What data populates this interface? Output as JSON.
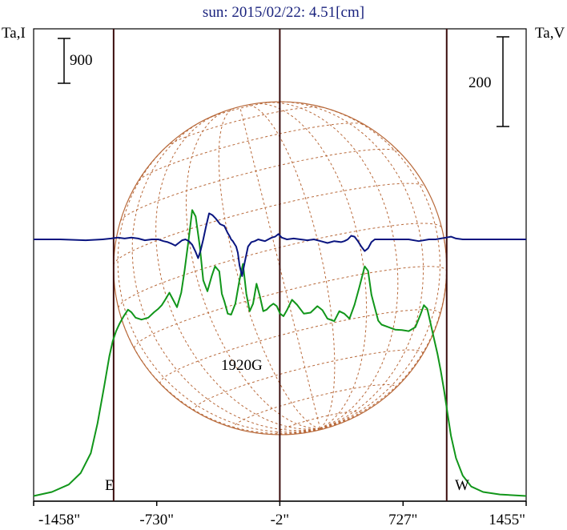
{
  "title": "sun: 2015/02/22: 4.51[cm]",
  "left_axis_label": "Ta,I",
  "right_axis_label": "Ta,V",
  "scale_left": "900",
  "scale_right": "200",
  "east_label": "E",
  "west_label": "W",
  "annotation": "1920G",
  "colors": {
    "intensity": "#11961a",
    "polarization": "#0a1580",
    "sun_grid": "#b8693a",
    "limb_lines": "#3a0c0c",
    "title": "#1a237e"
  },
  "chart_data": {
    "type": "line",
    "title": "sun: 2015/02/22: 4.51[cm]",
    "x_unit": "arcsec",
    "xlim": [
      -1458,
      1455
    ],
    "x_ticks": [
      -1458,
      -730,
      -2,
      727,
      1455
    ],
    "x_tick_labels": [
      "-1458\"",
      "-730\"",
      "-2\"",
      "727\"",
      "1455\""
    ],
    "vertical_lines": [
      -985,
      -2,
      985
    ],
    "series": [
      {
        "key": "intensity",
        "axis": "Ta,I",
        "x": [
          -1458,
          -1350,
          -1250,
          -1180,
          -1120,
          -1080,
          -1040,
          -1010,
          -990,
          -970,
          -950,
          -925,
          -900,
          -880,
          -855,
          -820,
          -780,
          -745,
          -720,
          -700,
          -680,
          -655,
          -630,
          -610,
          -585,
          -565,
          -540,
          -520,
          -500,
          -475,
          -455,
          -430,
          -405,
          -385,
          -360,
          -345,
          -330,
          -310,
          -290,
          -265,
          -240,
          -220,
          -200,
          -180,
          -160,
          -140,
          -120,
          -100,
          -80,
          -60,
          -40,
          -20,
          0,
          20,
          40,
          70,
          100,
          140,
          180,
          220,
          250,
          280,
          320,
          350,
          380,
          410,
          440,
          470,
          500,
          520,
          540,
          560,
          580,
          600,
          640,
          680,
          720,
          760,
          800,
          830,
          850,
          870,
          890,
          910,
          930,
          950,
          970,
          990,
          1010,
          1040,
          1080,
          1130,
          1200,
          1300,
          1455
        ],
        "y": [
          40,
          120,
          270,
          500,
          900,
          1500,
          2250,
          2850,
          3150,
          3350,
          3500,
          3650,
          3780,
          3730,
          3620,
          3580,
          3620,
          3730,
          3800,
          3870,
          3980,
          4120,
          3960,
          3830,
          4120,
          4570,
          5220,
          5780,
          5650,
          5050,
          4370,
          4150,
          4450,
          4650,
          4550,
          4100,
          3950,
          3700,
          3680,
          3900,
          4380,
          4700,
          4100,
          3750,
          3900,
          4300,
          4050,
          3750,
          3780,
          3850,
          3900,
          3850,
          3700,
          3650,
          3770,
          3980,
          3880,
          3700,
          3720,
          3850,
          3770,
          3600,
          3550,
          3750,
          3700,
          3600,
          3880,
          4250,
          4650,
          4560,
          4080,
          3820,
          3560,
          3480,
          3430,
          3380,
          3370,
          3350,
          3430,
          3680,
          3870,
          3800,
          3500,
          3200,
          2900,
          2550,
          2150,
          1700,
          1250,
          800,
          450,
          230,
          120,
          70,
          40
        ]
      },
      {
        "key": "polarization",
        "axis": "Ta,V",
        "x": [
          -1458,
          -1300,
          -1150,
          -1050,
          -1000,
          -960,
          -920,
          -880,
          -840,
          -800,
          -760,
          -720,
          -690,
          -665,
          -640,
          -620,
          -600,
          -580,
          -560,
          -540,
          -520,
          -500,
          -485,
          -470,
          -455,
          -440,
          -420,
          -400,
          -380,
          -355,
          -330,
          -310,
          -300,
          -290,
          -280,
          -270,
          -260,
          -250,
          -240,
          -225,
          -210,
          -190,
          -170,
          -150,
          -130,
          -110,
          -90,
          -70,
          -50,
          -30,
          -10,
          10,
          40,
          80,
          120,
          160,
          200,
          240,
          280,
          320,
          360,
          380,
          400,
          420,
          440,
          460,
          480,
          500,
          520,
          540,
          560,
          600,
          650,
          700,
          760,
          820,
          880,
          920,
          950,
          980,
          1010,
          1040,
          1080,
          1150,
          1250,
          1455
        ],
        "y": [
          0,
          0,
          -2,
          0,
          2,
          4,
          2,
          4,
          2,
          -2,
          0,
          0,
          -4,
          -6,
          -10,
          -14,
          -8,
          -2,
          0,
          -4,
          -12,
          -28,
          -42,
          -24,
          0,
          26,
          58,
          54,
          46,
          34,
          30,
          14,
          8,
          0,
          -4,
          -10,
          -16,
          -30,
          -58,
          -82,
          -52,
          -16,
          -6,
          -4,
          0,
          -2,
          -4,
          0,
          4,
          6,
          12,
          4,
          0,
          2,
          0,
          -2,
          0,
          -4,
          -8,
          -4,
          -6,
          -4,
          0,
          8,
          6,
          -4,
          -16,
          -26,
          -20,
          -6,
          0,
          0,
          0,
          0,
          0,
          -4,
          0,
          0,
          2,
          4,
          6,
          2,
          0,
          0,
          0,
          0
        ]
      }
    ]
  }
}
